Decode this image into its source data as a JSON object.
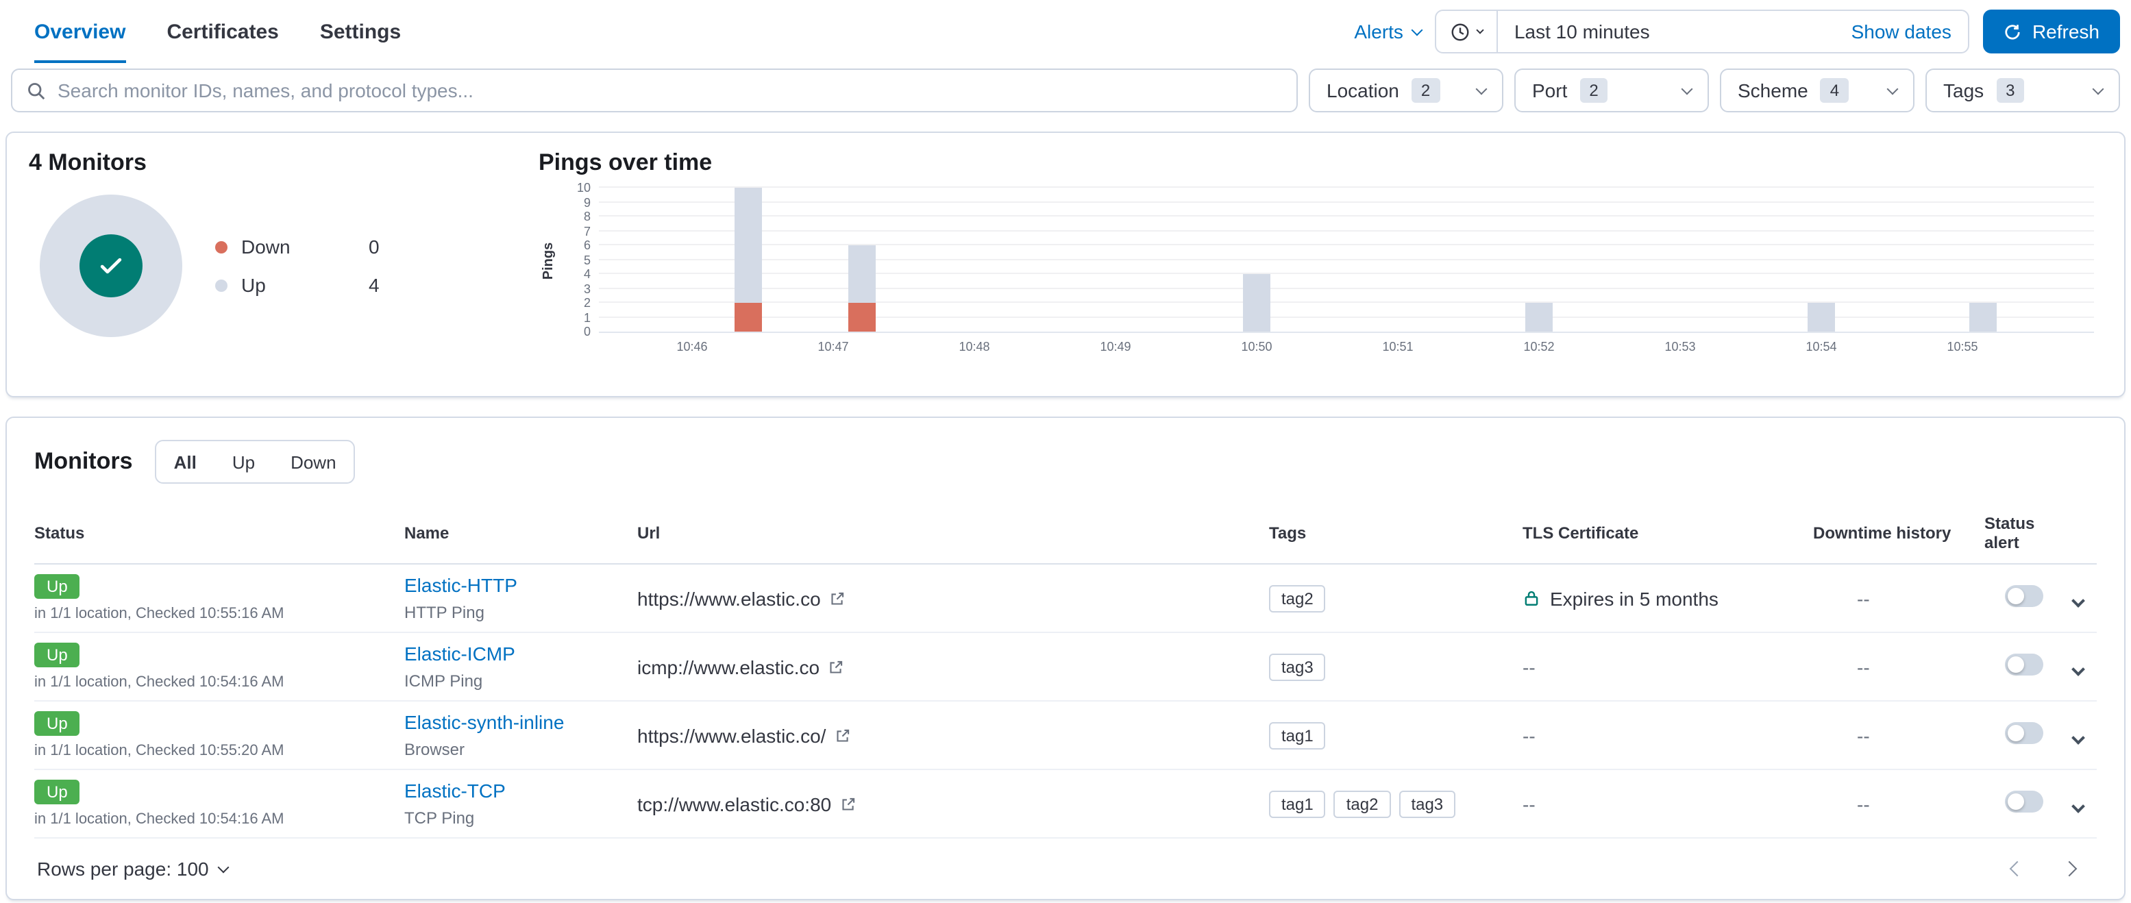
{
  "colors": {
    "accent": "#0071c2",
    "up_badge": "#4caf50",
    "down": "#d96f5d",
    "bar_up": "#d3dae6",
    "success": "#017d73",
    "text": "#343741",
    "subdued": "#69707d",
    "border": "#d3dae6"
  },
  "nav": {
    "tabs": [
      {
        "label": "Overview",
        "active": true
      },
      {
        "label": "Certificates",
        "active": false
      },
      {
        "label": "Settings",
        "active": false
      }
    ],
    "alerts_label": "Alerts",
    "time_range": "Last 10 minutes",
    "show_dates_label": "Show dates",
    "refresh_label": "Refresh"
  },
  "search": {
    "placeholder": "Search monitor IDs, names, and protocol types..."
  },
  "filters": [
    {
      "label": "Location",
      "count": "2"
    },
    {
      "label": "Port",
      "count": "2"
    },
    {
      "label": "Scheme",
      "count": "4"
    },
    {
      "label": "Tags",
      "count": "3"
    }
  ],
  "summary": {
    "title": "4 Monitors",
    "donut": {
      "up": 4,
      "down": 0
    },
    "legend": [
      {
        "label": "Down",
        "value": "0",
        "color": "#d96f5d"
      },
      {
        "label": "Up",
        "value": "4",
        "color": "#d3dae6"
      }
    ]
  },
  "chart_data": {
    "type": "bar",
    "stacked": true,
    "title": "Pings over time",
    "xlabel": "",
    "ylabel": "Pings",
    "ylim": [
      0,
      10
    ],
    "y_ticks": [
      0,
      1,
      2,
      3,
      4,
      5,
      6,
      7,
      8,
      9,
      10
    ],
    "x_ticks": [
      "10:46",
      "10:47",
      "10:48",
      "10:49",
      "10:50",
      "10:51",
      "10:52",
      "10:53",
      "10:54",
      "10:55"
    ],
    "grid": true,
    "legend_position": "none",
    "series_colors": {
      "up": "#d3dae6",
      "down": "#d96f5d"
    },
    "bars": [
      {
        "pos": 0.4,
        "up": 8,
        "down": 2
      },
      {
        "pos": 1.2,
        "up": 4,
        "down": 2
      },
      {
        "pos": 4.0,
        "up": 4,
        "down": 0
      },
      {
        "pos": 6.0,
        "up": 2,
        "down": 0
      },
      {
        "pos": 8.0,
        "up": 2,
        "down": 0
      },
      {
        "pos": 9.15,
        "up": 2,
        "down": 0
      }
    ]
  },
  "monitors": {
    "title": "Monitors",
    "status_filters": [
      {
        "label": "All",
        "active": true
      },
      {
        "label": "Up",
        "active": false
      },
      {
        "label": "Down",
        "active": false
      }
    ],
    "columns": [
      "Status",
      "Name",
      "Url",
      "Tags",
      "TLS Certificate",
      "Downtime history",
      "Status alert"
    ],
    "rows": [
      {
        "status": "Up",
        "status_detail": "in 1/1 location, Checked 10:55:16 AM",
        "name": "Elastic-HTTP",
        "type": "HTTP Ping",
        "url": "https://www.elastic.co",
        "tags": [
          "tag2"
        ],
        "tls": "Expires in 5 months",
        "tls_has_lock": true,
        "downtime": "--",
        "alert_enabled": false
      },
      {
        "status": "Up",
        "status_detail": "in 1/1 location, Checked 10:54:16 AM",
        "name": "Elastic-ICMP",
        "type": "ICMP Ping",
        "url": "icmp://www.elastic.co",
        "tags": [
          "tag3"
        ],
        "tls": "--",
        "tls_has_lock": false,
        "downtime": "--",
        "alert_enabled": false
      },
      {
        "status": "Up",
        "status_detail": "in 1/1 location, Checked 10:55:20 AM",
        "name": "Elastic-synth-inline",
        "type": "Browser",
        "url": "https://www.elastic.co/",
        "tags": [
          "tag1"
        ],
        "tls": "--",
        "tls_has_lock": false,
        "downtime": "--",
        "alert_enabled": false
      },
      {
        "status": "Up",
        "status_detail": "in 1/1 location, Checked 10:54:16 AM",
        "name": "Elastic-TCP",
        "type": "TCP Ping",
        "url": "tcp://www.elastic.co:80",
        "tags": [
          "tag1",
          "tag2",
          "tag3"
        ],
        "tls": "--",
        "tls_has_lock": false,
        "downtime": "--",
        "alert_enabled": false
      }
    ],
    "rows_per_page_label": "Rows per page: 100"
  }
}
